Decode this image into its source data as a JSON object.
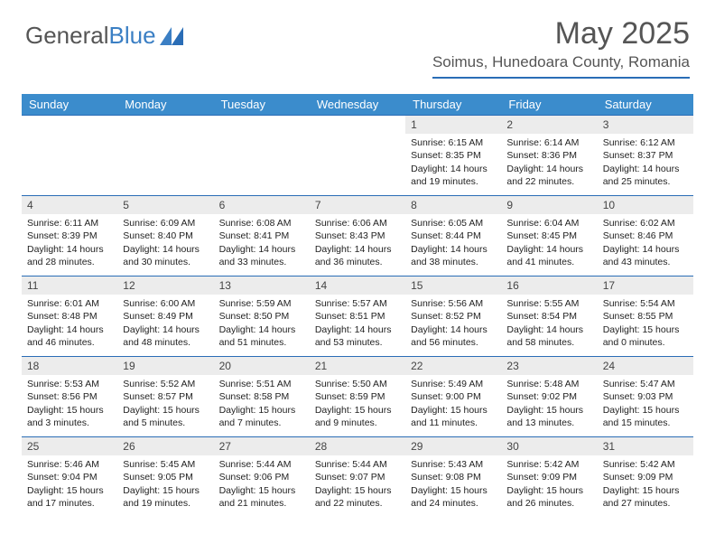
{
  "logo": {
    "part1": "General",
    "part2": "Blue"
  },
  "header": {
    "month_title": "May 2025",
    "location": "Soimus, Hunedoara County, Romania"
  },
  "colors": {
    "header_bar": "#3b8ccc",
    "week_border": "#2a6db6",
    "daynum_bg": "#ececec",
    "text": "#222222",
    "logo_gray": "#555555",
    "logo_blue": "#3b7fc4",
    "background": "#ffffff"
  },
  "day_labels": [
    "Sunday",
    "Monday",
    "Tuesday",
    "Wednesday",
    "Thursday",
    "Friday",
    "Saturday"
  ],
  "weeks": [
    [
      {
        "empty": true
      },
      {
        "empty": true
      },
      {
        "empty": true
      },
      {
        "empty": true
      },
      {
        "n": "1",
        "sr": "6:15 AM",
        "ss": "8:35 PM",
        "d1": "Daylight: 14 hours",
        "d2": "and 19 minutes."
      },
      {
        "n": "2",
        "sr": "6:14 AM",
        "ss": "8:36 PM",
        "d1": "Daylight: 14 hours",
        "d2": "and 22 minutes."
      },
      {
        "n": "3",
        "sr": "6:12 AM",
        "ss": "8:37 PM",
        "d1": "Daylight: 14 hours",
        "d2": "and 25 minutes."
      }
    ],
    [
      {
        "n": "4",
        "sr": "6:11 AM",
        "ss": "8:39 PM",
        "d1": "Daylight: 14 hours",
        "d2": "and 28 minutes."
      },
      {
        "n": "5",
        "sr": "6:09 AM",
        "ss": "8:40 PM",
        "d1": "Daylight: 14 hours",
        "d2": "and 30 minutes."
      },
      {
        "n": "6",
        "sr": "6:08 AM",
        "ss": "8:41 PM",
        "d1": "Daylight: 14 hours",
        "d2": "and 33 minutes."
      },
      {
        "n": "7",
        "sr": "6:06 AM",
        "ss": "8:43 PM",
        "d1": "Daylight: 14 hours",
        "d2": "and 36 minutes."
      },
      {
        "n": "8",
        "sr": "6:05 AM",
        "ss": "8:44 PM",
        "d1": "Daylight: 14 hours",
        "d2": "and 38 minutes."
      },
      {
        "n": "9",
        "sr": "6:04 AM",
        "ss": "8:45 PM",
        "d1": "Daylight: 14 hours",
        "d2": "and 41 minutes."
      },
      {
        "n": "10",
        "sr": "6:02 AM",
        "ss": "8:46 PM",
        "d1": "Daylight: 14 hours",
        "d2": "and 43 minutes."
      }
    ],
    [
      {
        "n": "11",
        "sr": "6:01 AM",
        "ss": "8:48 PM",
        "d1": "Daylight: 14 hours",
        "d2": "and 46 minutes."
      },
      {
        "n": "12",
        "sr": "6:00 AM",
        "ss": "8:49 PM",
        "d1": "Daylight: 14 hours",
        "d2": "and 48 minutes."
      },
      {
        "n": "13",
        "sr": "5:59 AM",
        "ss": "8:50 PM",
        "d1": "Daylight: 14 hours",
        "d2": "and 51 minutes."
      },
      {
        "n": "14",
        "sr": "5:57 AM",
        "ss": "8:51 PM",
        "d1": "Daylight: 14 hours",
        "d2": "and 53 minutes."
      },
      {
        "n": "15",
        "sr": "5:56 AM",
        "ss": "8:52 PM",
        "d1": "Daylight: 14 hours",
        "d2": "and 56 minutes."
      },
      {
        "n": "16",
        "sr": "5:55 AM",
        "ss": "8:54 PM",
        "d1": "Daylight: 14 hours",
        "d2": "and 58 minutes."
      },
      {
        "n": "17",
        "sr": "5:54 AM",
        "ss": "8:55 PM",
        "d1": "Daylight: 15 hours",
        "d2": "and 0 minutes."
      }
    ],
    [
      {
        "n": "18",
        "sr": "5:53 AM",
        "ss": "8:56 PM",
        "d1": "Daylight: 15 hours",
        "d2": "and 3 minutes."
      },
      {
        "n": "19",
        "sr": "5:52 AM",
        "ss": "8:57 PM",
        "d1": "Daylight: 15 hours",
        "d2": "and 5 minutes."
      },
      {
        "n": "20",
        "sr": "5:51 AM",
        "ss": "8:58 PM",
        "d1": "Daylight: 15 hours",
        "d2": "and 7 minutes."
      },
      {
        "n": "21",
        "sr": "5:50 AM",
        "ss": "8:59 PM",
        "d1": "Daylight: 15 hours",
        "d2": "and 9 minutes."
      },
      {
        "n": "22",
        "sr": "5:49 AM",
        "ss": "9:00 PM",
        "d1": "Daylight: 15 hours",
        "d2": "and 11 minutes."
      },
      {
        "n": "23",
        "sr": "5:48 AM",
        "ss": "9:02 PM",
        "d1": "Daylight: 15 hours",
        "d2": "and 13 minutes."
      },
      {
        "n": "24",
        "sr": "5:47 AM",
        "ss": "9:03 PM",
        "d1": "Daylight: 15 hours",
        "d2": "and 15 minutes."
      }
    ],
    [
      {
        "n": "25",
        "sr": "5:46 AM",
        "ss": "9:04 PM",
        "d1": "Daylight: 15 hours",
        "d2": "and 17 minutes."
      },
      {
        "n": "26",
        "sr": "5:45 AM",
        "ss": "9:05 PM",
        "d1": "Daylight: 15 hours",
        "d2": "and 19 minutes."
      },
      {
        "n": "27",
        "sr": "5:44 AM",
        "ss": "9:06 PM",
        "d1": "Daylight: 15 hours",
        "d2": "and 21 minutes."
      },
      {
        "n": "28",
        "sr": "5:44 AM",
        "ss": "9:07 PM",
        "d1": "Daylight: 15 hours",
        "d2": "and 22 minutes."
      },
      {
        "n": "29",
        "sr": "5:43 AM",
        "ss": "9:08 PM",
        "d1": "Daylight: 15 hours",
        "d2": "and 24 minutes."
      },
      {
        "n": "30",
        "sr": "5:42 AM",
        "ss": "9:09 PM",
        "d1": "Daylight: 15 hours",
        "d2": "and 26 minutes."
      },
      {
        "n": "31",
        "sr": "5:42 AM",
        "ss": "9:09 PM",
        "d1": "Daylight: 15 hours",
        "d2": "and 27 minutes."
      }
    ]
  ]
}
